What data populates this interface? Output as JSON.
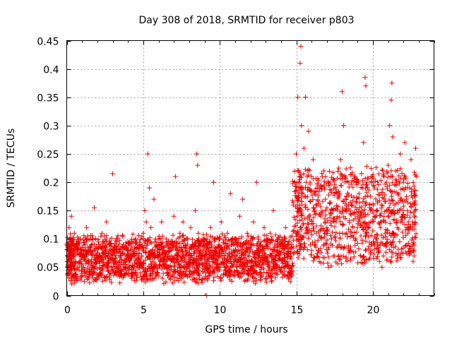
{
  "chart_data": {
    "type": "scatter",
    "title": "Day 308 of 2018, SRMTID for receiver p803",
    "xlabel": "GPS time / hours",
    "ylabel": "SRMTID / TECUs",
    "xlim": [
      0,
      24
    ],
    "ylim": [
      0,
      0.45
    ],
    "x_ticks": [
      0,
      5,
      10,
      15,
      20
    ],
    "x_tick_labels": [
      "0",
      "5",
      "10",
      "15",
      "20"
    ],
    "y_ticks": [
      0,
      0.05,
      0.1,
      0.15,
      0.2,
      0.25,
      0.3,
      0.35,
      0.4,
      0.45
    ],
    "y_tick_labels": [
      "0",
      "0.05",
      "0.1",
      "0.15",
      "0.2",
      "0.25",
      "0.3",
      "0.35",
      "0.4",
      "0.45"
    ],
    "grid": true,
    "marker": "plus",
    "marker_color": "#ee0000",
    "series_description": "Roughly 0.03-0.12 TECU from 0 to 14.5 h with spikes (0.215 at 3.0 h, 0.25 at 5.3 h and 8.5 h); elevated 0.05-0.44 TECU from 14.8 to 22.8 h",
    "points": [
      [
        0.05,
        0.05
      ],
      [
        0.1,
        0.08
      ],
      [
        0.15,
        0.12
      ],
      [
        0.2,
        0.065
      ],
      [
        0.25,
        0.1
      ],
      [
        0.3,
        0.14
      ],
      [
        0.35,
        0.055
      ],
      [
        0.4,
        0.09
      ],
      [
        0.45,
        0.07
      ],
      [
        0.5,
        0.11
      ],
      [
        0.6,
        0.06
      ],
      [
        0.7,
        0.085
      ],
      [
        0.8,
        0.045
      ],
      [
        0.9,
        0.1
      ],
      [
        1.0,
        0.07
      ],
      [
        1.1,
        0.05
      ],
      [
        1.2,
        0.09
      ],
      [
        1.3,
        0.12
      ],
      [
        1.4,
        0.06
      ],
      [
        1.5,
        0.08
      ],
      [
        1.6,
        0.045
      ],
      [
        1.7,
        0.1
      ],
      [
        1.8,
        0.155
      ],
      [
        1.9,
        0.07
      ],
      [
        2.0,
        0.06
      ],
      [
        2.1,
        0.09
      ],
      [
        2.2,
        0.04
      ],
      [
        2.3,
        0.11
      ],
      [
        2.4,
        0.075
      ],
      [
        2.5,
        0.055
      ],
      [
        2.6,
        0.13
      ],
      [
        2.7,
        0.065
      ],
      [
        2.8,
        0.09
      ],
      [
        2.9,
        0.05
      ],
      [
        3.0,
        0.215
      ],
      [
        3.1,
        0.08
      ],
      [
        3.2,
        0.06
      ],
      [
        3.3,
        0.1
      ],
      [
        3.4,
        0.045
      ],
      [
        3.5,
        0.07
      ],
      [
        3.6,
        0.035
      ],
      [
        3.7,
        0.09
      ],
      [
        3.8,
        0.055
      ],
      [
        3.9,
        0.04
      ],
      [
        4.0,
        0.08
      ],
      [
        4.1,
        0.05
      ],
      [
        4.2,
        0.065
      ],
      [
        4.3,
        0.035
      ],
      [
        4.4,
        0.075
      ],
      [
        4.5,
        0.045
      ],
      [
        4.6,
        0.09
      ],
      [
        4.7,
        0.06
      ],
      [
        4.8,
        0.04
      ],
      [
        4.9,
        0.07
      ],
      [
        5.0,
        0.11
      ],
      [
        5.1,
        0.15
      ],
      [
        5.2,
        0.13
      ],
      [
        5.3,
        0.25
      ],
      [
        5.4,
        0.19
      ],
      [
        5.5,
        0.12
      ],
      [
        5.6,
        0.08
      ],
      [
        5.7,
        0.17
      ],
      [
        5.8,
        0.1
      ],
      [
        5.9,
        0.07
      ],
      [
        6.0,
        0.09
      ],
      [
        6.1,
        0.06
      ],
      [
        6.2,
        0.13
      ],
      [
        6.3,
        0.08
      ],
      [
        6.4,
        0.05
      ],
      [
        6.5,
        0.1
      ],
      [
        6.6,
        0.07
      ],
      [
        6.7,
        0.045
      ],
      [
        6.8,
        0.09
      ],
      [
        6.9,
        0.065
      ],
      [
        7.0,
        0.14
      ],
      [
        7.1,
        0.21
      ],
      [
        7.2,
        0.08
      ],
      [
        7.3,
        0.06
      ],
      [
        7.4,
        0.11
      ],
      [
        7.5,
        0.05
      ],
      [
        7.6,
        0.13
      ],
      [
        7.7,
        0.085
      ],
      [
        7.8,
        0.07
      ],
      [
        7.9,
        0.1
      ],
      [
        8.0,
        0.06
      ],
      [
        8.1,
        0.12
      ],
      [
        8.2,
        0.09
      ],
      [
        8.3,
        0.075
      ],
      [
        8.4,
        0.15
      ],
      [
        8.5,
        0.25
      ],
      [
        8.55,
        0.23
      ],
      [
        8.6,
        0.11
      ],
      [
        8.7,
        0.08
      ],
      [
        8.8,
        0.065
      ],
      [
        8.9,
        0.1
      ],
      [
        9.0,
        0.07
      ],
      [
        9.1,
        0.05
      ],
      [
        9.15,
        0.0
      ],
      [
        9.2,
        0.09
      ],
      [
        9.3,
        0.06
      ],
      [
        9.4,
        0.12
      ],
      [
        9.5,
        0.08
      ],
      [
        9.6,
        0.2
      ],
      [
        9.7,
        0.07
      ],
      [
        9.8,
        0.055
      ],
      [
        9.9,
        0.1
      ],
      [
        10.0,
        0.075
      ],
      [
        10.1,
        0.13
      ],
      [
        10.2,
        0.06
      ],
      [
        10.3,
        0.085
      ],
      [
        10.4,
        0.045
      ],
      [
        10.5,
        0.11
      ],
      [
        10.6,
        0.07
      ],
      [
        10.7,
        0.18
      ],
      [
        10.8,
        0.09
      ],
      [
        10.9,
        0.06
      ],
      [
        11.0,
        0.1
      ],
      [
        11.1,
        0.05
      ],
      [
        11.2,
        0.08
      ],
      [
        11.3,
        0.14
      ],
      [
        11.4,
        0.065
      ],
      [
        11.5,
        0.17
      ],
      [
        11.6,
        0.09
      ],
      [
        11.7,
        0.055
      ],
      [
        11.8,
        0.11
      ],
      [
        11.9,
        0.07
      ],
      [
        12.0,
        0.045
      ],
      [
        12.1,
        0.09
      ],
      [
        12.2,
        0.13
      ],
      [
        12.3,
        0.06
      ],
      [
        12.4,
        0.2
      ],
      [
        12.5,
        0.1
      ],
      [
        12.6,
        0.07
      ],
      [
        12.7,
        0.05
      ],
      [
        12.8,
        0.085
      ],
      [
        12.9,
        0.12
      ],
      [
        13.0,
        0.06
      ],
      [
        13.1,
        0.09
      ],
      [
        13.2,
        0.045
      ],
      [
        13.3,
        0.11
      ],
      [
        13.4,
        0.07
      ],
      [
        13.5,
        0.15
      ],
      [
        13.6,
        0.08
      ],
      [
        13.7,
        0.055
      ],
      [
        13.8,
        0.1
      ],
      [
        13.9,
        0.065
      ],
      [
        14.0,
        0.09
      ],
      [
        14.1,
        0.04
      ],
      [
        14.2,
        0.075
      ],
      [
        14.3,
        0.12
      ],
      [
        14.4,
        0.06
      ],
      [
        14.5,
        0.095
      ],
      [
        14.6,
        0.07
      ],
      [
        14.7,
        0.05
      ],
      [
        14.8,
        0.16
      ],
      [
        14.9,
        0.2
      ],
      [
        15.0,
        0.25
      ],
      [
        15.05,
        0.14
      ],
      [
        15.1,
        0.35
      ],
      [
        15.15,
        0.22
      ],
      [
        15.2,
        0.1
      ],
      [
        15.25,
        0.41
      ],
      [
        15.3,
        0.44
      ],
      [
        15.35,
        0.3
      ],
      [
        15.4,
        0.18
      ],
      [
        15.5,
        0.26
      ],
      [
        15.6,
        0.35
      ],
      [
        15.7,
        0.12
      ],
      [
        15.8,
        0.29
      ],
      [
        15.9,
        0.2
      ],
      [
        16.0,
        0.08
      ],
      [
        16.1,
        0.24
      ],
      [
        16.2,
        0.15
      ],
      [
        16.3,
        0.11
      ],
      [
        16.4,
        0.19
      ],
      [
        16.5,
        0.06
      ],
      [
        16.6,
        0.14
      ],
      [
        16.7,
        0.21
      ],
      [
        16.8,
        0.09
      ],
      [
        16.9,
        0.17
      ],
      [
        17.0,
        0.12
      ],
      [
        17.1,
        0.05
      ],
      [
        17.2,
        0.2
      ],
      [
        17.3,
        0.1
      ],
      [
        17.4,
        0.15
      ],
      [
        17.5,
        0.07
      ],
      [
        17.6,
        0.13
      ],
      [
        17.7,
        0.18
      ],
      [
        17.8,
        0.09
      ],
      [
        17.9,
        0.24
      ],
      [
        18.0,
        0.36
      ],
      [
        18.1,
        0.3
      ],
      [
        18.2,
        0.15
      ],
      [
        18.3,
        0.11
      ],
      [
        18.4,
        0.2
      ],
      [
        18.5,
        0.08
      ],
      [
        18.6,
        0.16
      ],
      [
        18.7,
        0.12
      ],
      [
        18.8,
        0.21
      ],
      [
        18.9,
        0.1
      ],
      [
        19.0,
        0.14
      ],
      [
        19.1,
        0.18
      ],
      [
        19.2,
        0.07
      ],
      [
        19.3,
        0.15
      ],
      [
        19.4,
        0.27
      ],
      [
        19.5,
        0.385
      ],
      [
        19.55,
        0.37
      ],
      [
        19.6,
        0.2
      ],
      [
        19.7,
        0.12
      ],
      [
        19.8,
        0.16
      ],
      [
        19.9,
        0.09
      ],
      [
        20.0,
        0.13
      ],
      [
        20.1,
        0.19
      ],
      [
        20.2,
        0.1
      ],
      [
        20.3,
        0.15
      ],
      [
        20.4,
        0.08
      ],
      [
        20.5,
        0.12
      ],
      [
        20.6,
        0.05
      ],
      [
        20.7,
        0.07
      ],
      [
        20.8,
        0.11
      ],
      [
        20.9,
        0.2
      ],
      [
        21.0,
        0.23
      ],
      [
        21.1,
        0.3
      ],
      [
        21.2,
        0.345
      ],
      [
        21.25,
        0.375
      ],
      [
        21.3,
        0.28
      ],
      [
        21.4,
        0.16
      ],
      [
        21.5,
        0.22
      ],
      [
        21.6,
        0.12
      ],
      [
        21.7,
        0.18
      ],
      [
        21.8,
        0.25
      ],
      [
        21.9,
        0.14
      ],
      [
        22.0,
        0.2
      ],
      [
        22.1,
        0.27
      ],
      [
        22.2,
        0.17
      ],
      [
        22.3,
        0.11
      ],
      [
        22.4,
        0.19
      ],
      [
        22.5,
        0.24
      ],
      [
        22.6,
        0.13
      ],
      [
        22.7,
        0.07
      ],
      [
        22.75,
        0.15
      ],
      [
        22.8,
        0.26
      ]
    ]
  }
}
